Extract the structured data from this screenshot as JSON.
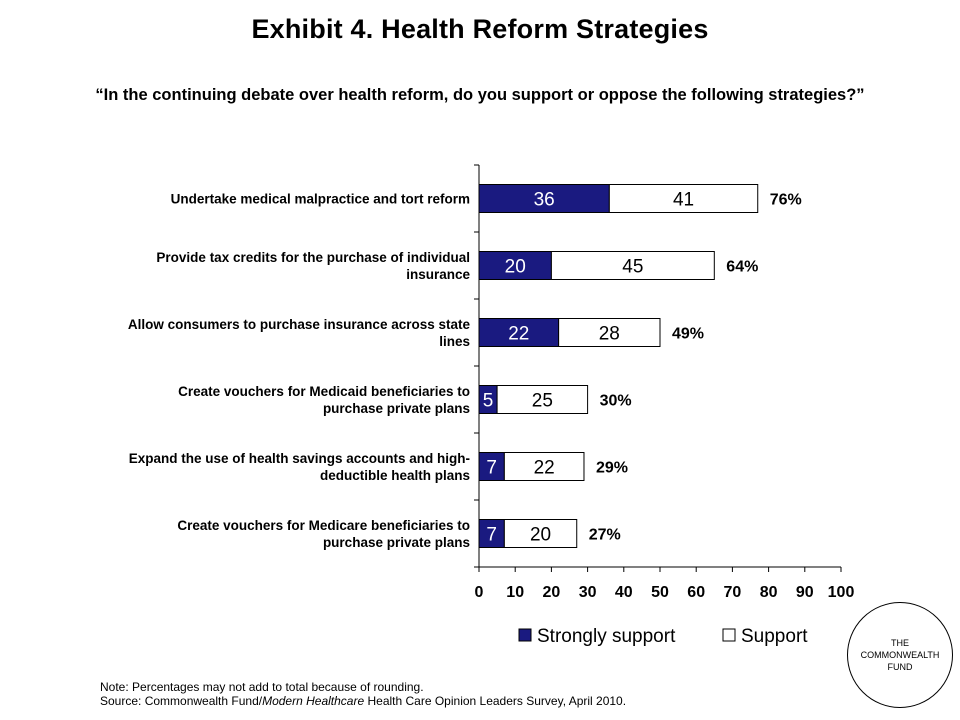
{
  "header": {
    "title": "Exhibit 4. Health Reform Strategies",
    "subtitle": "“In the continuing debate over health reform, do you support or oppose the following strategies?”"
  },
  "chart_data": {
    "type": "bar",
    "orientation": "horizontal",
    "stacked": true,
    "title": "",
    "xlabel": "",
    "ylabel": "",
    "xlim": [
      0,
      100
    ],
    "xticks": [
      0,
      10,
      20,
      30,
      40,
      50,
      60,
      70,
      80,
      90,
      100
    ],
    "grid": false,
    "legend_position": "bottom",
    "categories": [
      [
        "Undertake medical malpractice and tort reform"
      ],
      [
        "Provide tax credits for the purchase of individual",
        "insurance"
      ],
      [
        "Allow consumers to purchase insurance across state",
        "lines"
      ],
      [
        "Create vouchers for Medicaid beneficiaries to",
        "purchase private plans"
      ],
      [
        "Expand the use of health savings accounts and high-",
        "deductible health plans"
      ],
      [
        "Create vouchers for Medicare beneficiaries to",
        "purchase private plans"
      ]
    ],
    "series": [
      {
        "name": "Strongly support",
        "color": "#1a1a80",
        "values": [
          36,
          20,
          22,
          5,
          7,
          7
        ]
      },
      {
        "name": "Support",
        "color": "#ffffff",
        "values": [
          41,
          45,
          28,
          25,
          22,
          20
        ]
      }
    ],
    "totals": [
      "76%",
      "64%",
      "49%",
      "30%",
      "29%",
      "27%"
    ]
  },
  "footer": {
    "note": "Note: Percentages may not add to total because of rounding.",
    "source_prefix": "Source: Commonwealth Fund/",
    "source_italic": "Modern Healthcare",
    "source_suffix": " Health Care Opinion Leaders Survey, April 2010."
  },
  "logo": {
    "line1": "THE",
    "line2": "COMMONWEALTH",
    "line3": "FUND"
  }
}
